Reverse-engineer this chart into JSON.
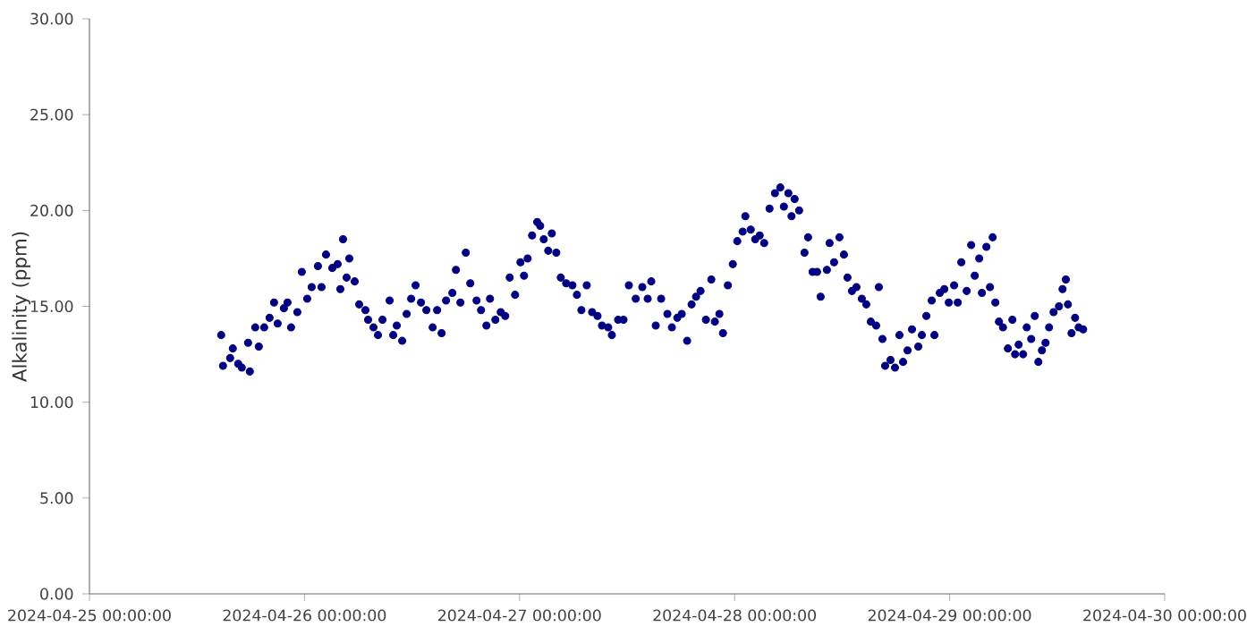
{
  "chart_data": {
    "type": "scatter",
    "ylabel": "Alkalinity (ppm)",
    "marker": "circle",
    "xlim": [
      "2024-04-25",
      "2024-04-30"
    ],
    "ylim": [
      0,
      30
    ],
    "xticks": [
      {
        "value": "2024-04-25",
        "label": "2024-04-25 00:00:00"
      },
      {
        "value": "2024-04-26",
        "label": "2024-04-26 00:00:00"
      },
      {
        "value": "2024-04-27",
        "label": "2024-04-27 00:00:00"
      },
      {
        "value": "2024-04-28",
        "label": "2024-04-28 00:00:00"
      },
      {
        "value": "2024-04-29",
        "label": "2024-04-29 00:00:00"
      },
      {
        "value": "2024-04-30",
        "label": "2024-04-30 00:00:00"
      }
    ],
    "yticks": [
      {
        "value": 0,
        "label": "0.00"
      },
      {
        "value": 5,
        "label": "5.00"
      },
      {
        "value": 10,
        "label": "10.00"
      },
      {
        "value": 15,
        "label": "15.00"
      },
      {
        "value": 20,
        "label": "20.00"
      },
      {
        "value": 25,
        "label": "25.00"
      },
      {
        "value": 30,
        "label": "30.00"
      }
    ],
    "series": [
      {
        "color": "#000080",
        "x": [
          "2024-04-25T14:42",
          "2024-04-25T14:54",
          "2024-04-25T15:42",
          "2024-04-25T16:00",
          "2024-04-25T16:36",
          "2024-04-25T17:00",
          "2024-04-25T17:42",
          "2024-04-25T17:54",
          "2024-04-25T18:30",
          "2024-04-25T18:54",
          "2024-04-25T19:30",
          "2024-04-25T20:06",
          "2024-04-25T20:36",
          "2024-04-25T21:00",
          "2024-04-25T21:42",
          "2024-04-25T22:06",
          "2024-04-25T22:30",
          "2024-04-25T23:12",
          "2024-04-25T23:42",
          "2024-04-26T00:18",
          "2024-04-26T00:48",
          "2024-04-26T01:30",
          "2024-04-26T01:54",
          "2024-04-26T02:24",
          "2024-04-26T03:06",
          "2024-04-26T03:42",
          "2024-04-26T04:00",
          "2024-04-26T04:18",
          "2024-04-26T04:42",
          "2024-04-26T05:00",
          "2024-04-26T05:36",
          "2024-04-26T06:06",
          "2024-04-26T06:48",
          "2024-04-26T07:06",
          "2024-04-26T07:42",
          "2024-04-26T08:12",
          "2024-04-26T08:42",
          "2024-04-26T09:30",
          "2024-04-26T09:54",
          "2024-04-26T10:18",
          "2024-04-26T10:54",
          "2024-04-26T11:24",
          "2024-04-26T11:54",
          "2024-04-26T12:24",
          "2024-04-26T13:00",
          "2024-04-26T13:36",
          "2024-04-26T14:18",
          "2024-04-26T14:48",
          "2024-04-26T15:18",
          "2024-04-26T15:48",
          "2024-04-26T16:30",
          "2024-04-26T16:54",
          "2024-04-26T17:24",
          "2024-04-26T18:00",
          "2024-04-26T18:30",
          "2024-04-26T19:12",
          "2024-04-26T19:42",
          "2024-04-26T20:18",
          "2024-04-26T20:42",
          "2024-04-26T21:18",
          "2024-04-26T21:54",
          "2024-04-26T22:24",
          "2024-04-26T22:54",
          "2024-04-26T23:30",
          "2024-04-27T00:06",
          "2024-04-27T00:30",
          "2024-04-27T00:54",
          "2024-04-27T01:24",
          "2024-04-27T01:58",
          "2024-04-27T02:18",
          "2024-04-27T02:42",
          "2024-04-27T03:12",
          "2024-04-27T03:36",
          "2024-04-27T04:06",
          "2024-04-27T04:36",
          "2024-04-27T05:12",
          "2024-04-27T05:54",
          "2024-04-27T06:24",
          "2024-04-27T06:54",
          "2024-04-27T07:30",
          "2024-04-27T08:06",
          "2024-04-27T08:42",
          "2024-04-27T09:12",
          "2024-04-27T09:54",
          "2024-04-27T10:18",
          "2024-04-27T11:00",
          "2024-04-27T11:36",
          "2024-04-27T12:12",
          "2024-04-27T12:58",
          "2024-04-27T13:42",
          "2024-04-27T14:18",
          "2024-04-27T14:42",
          "2024-04-27T15:12",
          "2024-04-27T15:48",
          "2024-04-27T16:30",
          "2024-04-27T17:00",
          "2024-04-27T17:36",
          "2024-04-27T18:06",
          "2024-04-27T18:42",
          "2024-04-27T19:12",
          "2024-04-27T19:42",
          "2024-04-27T20:12",
          "2024-04-27T20:48",
          "2024-04-27T21:24",
          "2024-04-27T21:48",
          "2024-04-27T22:18",
          "2024-04-27T22:42",
          "2024-04-27T23:15",
          "2024-04-27T23:48",
          "2024-04-28T00:18",
          "2024-04-28T00:54",
          "2024-04-28T01:12",
          "2024-04-28T01:48",
          "2024-04-28T02:18",
          "2024-04-28T02:48",
          "2024-04-28T03:18",
          "2024-04-28T03:54",
          "2024-04-28T04:30",
          "2024-04-28T05:06",
          "2024-04-28T05:30",
          "2024-04-28T06:00",
          "2024-04-28T06:21",
          "2024-04-28T06:42",
          "2024-04-28T07:12",
          "2024-04-28T07:48",
          "2024-04-28T08:12",
          "2024-04-28T08:42",
          "2024-04-28T09:12",
          "2024-04-28T09:36",
          "2024-04-28T10:18",
          "2024-04-28T10:36",
          "2024-04-28T11:06",
          "2024-04-28T11:42",
          "2024-04-28T12:12",
          "2024-04-28T12:36",
          "2024-04-28T13:06",
          "2024-04-28T13:36",
          "2024-04-28T14:12",
          "2024-04-28T14:42",
          "2024-04-28T15:12",
          "2024-04-28T15:48",
          "2024-04-28T16:06",
          "2024-04-28T16:30",
          "2024-04-28T16:48",
          "2024-04-28T17:24",
          "2024-04-28T17:54",
          "2024-04-28T18:24",
          "2024-04-28T18:48",
          "2024-04-28T19:18",
          "2024-04-28T19:48",
          "2024-04-28T20:30",
          "2024-04-28T20:54",
          "2024-04-28T21:24",
          "2024-04-28T22:00",
          "2024-04-28T22:18",
          "2024-04-28T22:54",
          "2024-04-28T23:24",
          "2024-04-28T23:54",
          "2024-04-29T00:30",
          "2024-04-29T00:54",
          "2024-04-29T01:18",
          "2024-04-29T01:54",
          "2024-04-29T02:24",
          "2024-04-29T02:48",
          "2024-04-29T03:18",
          "2024-04-29T03:36",
          "2024-04-29T04:06",
          "2024-04-29T04:30",
          "2024-04-29T04:48",
          "2024-04-29T05:06",
          "2024-04-29T05:30",
          "2024-04-29T05:57",
          "2024-04-29T06:30",
          "2024-04-29T07:00",
          "2024-04-29T07:18",
          "2024-04-29T07:42",
          "2024-04-29T08:12",
          "2024-04-29T08:36",
          "2024-04-29T09:06",
          "2024-04-29T09:30",
          "2024-04-29T09:54",
          "2024-04-29T10:18",
          "2024-04-29T10:42",
          "2024-04-29T11:06",
          "2024-04-29T11:36",
          "2024-04-29T12:12",
          "2024-04-29T12:36",
          "2024-04-29T12:58",
          "2024-04-29T13:12",
          "2024-04-29T13:36",
          "2024-04-29T14:00",
          "2024-04-29T14:24",
          "2024-04-29T14:54"
        ],
        "values": [
          13.5,
          11.9,
          12.3,
          12.8,
          12.0,
          11.8,
          13.1,
          11.6,
          13.9,
          12.9,
          13.9,
          14.4,
          15.2,
          14.1,
          14.9,
          15.2,
          13.9,
          14.7,
          16.8,
          15.4,
          16.0,
          17.1,
          16.0,
          17.7,
          17.0,
          17.2,
          15.9,
          18.5,
          16.5,
          17.5,
          16.3,
          15.1,
          14.8,
          14.3,
          13.9,
          13.5,
          14.3,
          15.3,
          13.5,
          14.0,
          13.2,
          14.6,
          15.4,
          16.1,
          15.2,
          14.8,
          13.9,
          14.8,
          13.6,
          15.3,
          15.7,
          16.9,
          15.2,
          17.8,
          16.2,
          15.3,
          14.8,
          14.0,
          15.4,
          14.3,
          14.7,
          14.5,
          16.5,
          15.6,
          17.3,
          16.6,
          17.5,
          18.7,
          19.4,
          19.2,
          18.5,
          17.9,
          18.8,
          17.8,
          16.5,
          16.2,
          16.1,
          15.6,
          14.8,
          16.1,
          14.7,
          14.5,
          14.0,
          13.9,
          13.5,
          14.3,
          14.3,
          16.1,
          15.4,
          16.0,
          15.4,
          16.3,
          14.0,
          15.4,
          14.6,
          13.9,
          14.4,
          14.6,
          13.2,
          15.1,
          15.5,
          15.8,
          14.3,
          16.4,
          14.2,
          14.6,
          13.6,
          16.1,
          17.2,
          18.4,
          18.9,
          19.7,
          19.0,
          18.5,
          18.7,
          18.3,
          20.1,
          20.9,
          21.2,
          20.2,
          20.9,
          19.7,
          20.6,
          20.0,
          17.8,
          18.6,
          16.8,
          16.8,
          15.5,
          16.9,
          18.3,
          17.3,
          18.6,
          17.7,
          16.5,
          15.8,
          16.0,
          15.4,
          15.1,
          14.2,
          14.0,
          16.0,
          13.3,
          11.9,
          12.2,
          11.8,
          13.5,
          12.1,
          12.7,
          13.8,
          12.9,
          13.5,
          14.5,
          15.3,
          13.5,
          15.7,
          15.9,
          15.2,
          16.1,
          15.2,
          17.3,
          15.8,
          18.2,
          16.6,
          17.5,
          15.7,
          18.1,
          16.0,
          18.6,
          15.2,
          14.2,
          13.9,
          12.8,
          14.3,
          12.5,
          13.0,
          12.5,
          13.9,
          13.3,
          14.5,
          12.1,
          12.7,
          13.1,
          13.9,
          14.7,
          15.0,
          15.9,
          16.4,
          15.1,
          13.6,
          14.4,
          13.9,
          13.8
        ]
      }
    ]
  }
}
